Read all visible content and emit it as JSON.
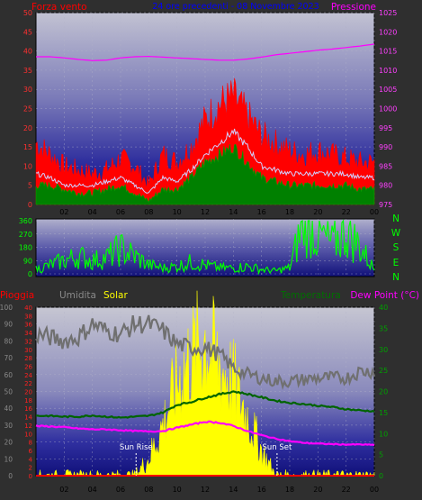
{
  "panel1": {
    "left_title": "Forza vento",
    "center_title": "24 ore precedenti - 08 Novembre 2023",
    "right_title": "Pressione"
  },
  "panel3": {
    "titles": [
      "Pioggia",
      "Umidita",
      "Solar",
      "Temperatura",
      "Dew Point (°C)"
    ],
    "sunrise_label": "Sun Rise",
    "sunset_label": "Sun Set"
  },
  "colors": {
    "background": "#2f2f2f",
    "wind": "#ff0000",
    "gust_avg": "#d0d0ff",
    "wind_avg": "#008000",
    "pressure": "#ff00ff",
    "direction": "#00ff00",
    "humidity": "#707070",
    "temperature": "#006400",
    "dewpoint": "#ff00ff",
    "solar": "#ffff00",
    "rain": "#ff0000",
    "title_center": "#0000ff",
    "grid": "#b4b4c8"
  },
  "chart_data": [
    {
      "type": "line",
      "name": "wind-pressure",
      "x_ticks": [
        "02",
        "04",
        "06",
        "08",
        "10",
        "12",
        "14",
        "16",
        "18",
        "20",
        "22",
        "00"
      ],
      "ylim_left": [
        0,
        50
      ],
      "yticks_left": [
        0,
        5,
        10,
        15,
        20,
        25,
        30,
        35,
        40,
        45,
        50
      ],
      "ylim_right": [
        975,
        1025
      ],
      "yticks_right": [
        975,
        980,
        985,
        990,
        995,
        1000,
        1005,
        1010,
        1015,
        1020,
        1025
      ],
      "hours": [
        0,
        1,
        2,
        3,
        4,
        5,
        6,
        7,
        8,
        9,
        10,
        11,
        12,
        13,
        14,
        15,
        16,
        17,
        18,
        19,
        20,
        21,
        22,
        23,
        24
      ],
      "series": [
        {
          "role": "wind",
          "values": [
            16,
            13,
            10,
            9,
            8,
            9,
            12,
            10,
            5,
            13,
            11,
            15,
            22,
            26,
            28,
            23,
            18,
            16,
            14,
            13,
            14,
            13,
            12,
            11,
            11
          ]
        },
        {
          "role": "gust_avg",
          "values": [
            8,
            7,
            5,
            5,
            5,
            6,
            7,
            5,
            3,
            7,
            6,
            9,
            13,
            16,
            19,
            15,
            10,
            9,
            8,
            8,
            8,
            8,
            8,
            7,
            7
          ]
        },
        {
          "role": "wind_avg",
          "values": [
            5,
            5,
            4,
            3,
            3,
            4,
            5,
            3,
            1,
            4,
            4,
            7,
            11,
            13,
            15,
            11,
            7,
            6,
            5,
            5,
            5,
            5,
            5,
            4,
            4
          ]
        },
        {
          "role": "pressure",
          "values": [
            1013.5,
            1013.5,
            1013.2,
            1012.8,
            1012.5,
            1012.6,
            1013.2,
            1013.5,
            1013.6,
            1013.4,
            1013.2,
            1013.0,
            1012.8,
            1012.6,
            1012.6,
            1012.9,
            1013.4,
            1014.0,
            1014.4,
            1014.8,
            1015.2,
            1015.5,
            1015.9,
            1016.3,
            1016.8
          ]
        }
      ]
    },
    {
      "type": "line",
      "name": "wind-direction",
      "ylim": [
        0,
        360
      ],
      "yticks": [
        0,
        90,
        180,
        270,
        360
      ],
      "compass": [
        "N",
        "W",
        "S",
        "E",
        "N"
      ],
      "hours": [
        0,
        1,
        2,
        3,
        4,
        5,
        6,
        7,
        8,
        9,
        10,
        11,
        12,
        13,
        14,
        15,
        16,
        17,
        18,
        19,
        20,
        21,
        22,
        23,
        24
      ],
      "series": [
        {
          "role": "direction",
          "values": [
            30,
            60,
            90,
            120,
            90,
            110,
            170,
            120,
            60,
            40,
            50,
            80,
            60,
            40,
            40,
            50,
            30,
            20,
            40,
            360,
            270,
            200,
            300,
            180,
            30
          ]
        }
      ]
    },
    {
      "type": "area",
      "name": "rain-humidity-solar-temperature",
      "ylim_humidity": [
        0,
        100
      ],
      "yticks_humidity": [
        0,
        10,
        20,
        30,
        40,
        50,
        60,
        70,
        80,
        90,
        100
      ],
      "ylim_rain": [
        0,
        40
      ],
      "yticks_rain": [
        0,
        2,
        4,
        6,
        8,
        10,
        12,
        14,
        16,
        18,
        20,
        22,
        24,
        26,
        28,
        30,
        32,
        34,
        36,
        38,
        40
      ],
      "ylim_temperature": [
        0,
        40
      ],
      "yticks_temperature": [
        0,
        5,
        10,
        15,
        20,
        25,
        30,
        35,
        40
      ],
      "hours": [
        0,
        1,
        2,
        3,
        4,
        5,
        6,
        7,
        8,
        9,
        10,
        11,
        12,
        13,
        14,
        15,
        16,
        17,
        18,
        19,
        20,
        21,
        22,
        23,
        24
      ],
      "sunrise_hour": 7.1,
      "sunset_hour": 17.1,
      "series": [
        {
          "role": "humidity",
          "values": [
            84,
            82,
            80,
            82,
            90,
            86,
            84,
            90,
            90,
            86,
            78,
            76,
            76,
            72,
            64,
            60,
            58,
            56,
            56,
            57,
            58,
            58,
            58,
            62,
            62
          ]
        },
        {
          "role": "temperature",
          "values": [
            14.2,
            14.2,
            14.0,
            14.0,
            14.3,
            14.0,
            13.8,
            14.0,
            14.2,
            15.0,
            16.8,
            17.5,
            18.5,
            19.3,
            20.0,
            19.4,
            18.6,
            17.8,
            17.3,
            17.0,
            16.6,
            16.3,
            15.8,
            15.5,
            15.3
          ]
        },
        {
          "role": "dewpoint",
          "values": [
            11.8,
            11.7,
            11.5,
            11.2,
            11.0,
            11.0,
            10.8,
            10.6,
            10.5,
            10.6,
            11.4,
            12.1,
            12.8,
            12.6,
            11.8,
            10.6,
            9.6,
            8.8,
            8.2,
            7.8,
            7.6,
            7.5,
            7.4,
            7.4,
            7.3
          ]
        },
        {
          "role": "solar",
          "values": [
            0,
            0,
            0,
            0,
            0,
            0,
            0,
            0,
            10,
            30,
            55,
            70,
            80,
            65,
            55,
            35,
            15,
            0,
            0,
            0,
            0,
            0,
            0,
            0,
            0
          ]
        },
        {
          "role": "rain",
          "values": [
            0,
            0,
            0,
            0,
            0,
            0,
            0,
            0,
            0,
            0,
            0,
            0,
            0,
            0,
            0,
            0,
            0,
            0,
            0,
            0,
            0,
            0,
            0,
            0,
            0
          ]
        }
      ]
    }
  ]
}
